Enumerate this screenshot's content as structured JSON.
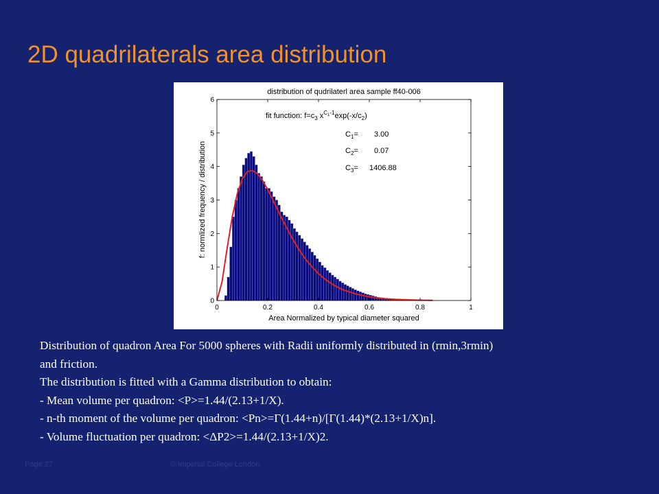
{
  "slide": {
    "title": "2D quadrilaterals area distribution",
    "page": "Page 27",
    "copyright": "© Imperial College London",
    "background_color": "#142270",
    "title_color": "#f0922c"
  },
  "body": {
    "lines": [
      "Distribution of quadron Area For 5000 spheres with Radii uniformly distributed in (rmin,3rmin)",
      "and friction.",
      "The distribution is fitted with a Gamma distribution to obtain:",
      "- Mean volume per quadron:  <P>=1.44/(2.13+1/X).",
      "- n-th moment of the volume per quadron: <Pn>=Γ(1.44+n)/[Γ(1.44)*(2.13+1/X)n].",
      "- Volume fluctuation per quadron: <ΔP2>=1.44/(2.13+1/X)2."
    ]
  },
  "chart_data": {
    "type": "bar",
    "title": "distribution of qudrilaterl area sample ff40-006",
    "xlabel": "Area Normalized by typical diameter squared",
    "ylabel": "f: normlized frequency / distribution",
    "xlim": [
      0,
      1
    ],
    "ylim": [
      0,
      6
    ],
    "xticks": [
      "0",
      "0.2",
      "0.4",
      "0.6",
      "0.8",
      "1"
    ],
    "yticks": [
      "0",
      "1",
      "2",
      "3",
      "4",
      "5",
      "6"
    ],
    "grid": false,
    "bar_color": "#0a0a80",
    "fit_color": "#e02020",
    "fit_text": {
      "prefix": "fit function: f=c",
      "sub1": "3",
      "mid": " x",
      "sup": "C",
      "supsub": "1",
      "supend": "-1",
      "suffix": "exp(-x/c",
      "sub2": "2",
      "end": ")"
    },
    "params": [
      {
        "name": "C",
        "index": "1",
        "sign": "=",
        "value": "3.00"
      },
      {
        "name": "C",
        "index": "2",
        "sign": "=",
        "value": "0.07"
      },
      {
        "name": "C",
        "index": "3",
        "sign": "=",
        "value": "1406.88"
      }
    ],
    "bins": {
      "start": 0.03,
      "width": 0.01,
      "values": [
        0.15,
        0.7,
        1.6,
        2.5,
        3.0,
        3.35,
        3.7,
        4.05,
        4.25,
        4.4,
        4.45,
        4.3,
        4.05,
        3.8,
        3.7,
        3.55,
        3.35,
        3.35,
        3.25,
        3.1,
        3.0,
        2.85,
        2.65,
        2.55,
        2.5,
        2.4,
        2.3,
        2.15,
        2.05,
        1.95,
        1.85,
        1.75,
        1.65,
        1.55,
        1.45,
        1.35,
        1.25,
        1.15,
        1.05,
        0.98,
        0.9,
        0.83,
        0.76,
        0.7,
        0.64,
        0.58,
        0.53,
        0.48,
        0.44,
        0.4,
        0.36,
        0.32,
        0.29,
        0.26,
        0.23,
        0.2,
        0.18,
        0.16,
        0.14,
        0.12,
        0.1,
        0.09,
        0.08,
        0.07,
        0.06,
        0.05,
        0.04,
        0.035,
        0.03,
        0.025,
        0.02,
        0.017,
        0.014,
        0.011,
        0.009,
        0.007,
        0.005,
        0.004,
        0.003,
        0.002,
        0.002,
        0.001,
        0.001
      ]
    },
    "fit": {
      "x": [
        0.0,
        0.02,
        0.04,
        0.06,
        0.08,
        0.1,
        0.12,
        0.14,
        0.16,
        0.18,
        0.2,
        0.22,
        0.24,
        0.26,
        0.28,
        0.3,
        0.32,
        0.34,
        0.36,
        0.38,
        0.4,
        0.42,
        0.44,
        0.46,
        0.48,
        0.5,
        0.55,
        0.6,
        0.65,
        0.7,
        0.75,
        0.8,
        0.85
      ],
      "y": [
        0.0,
        0.55,
        1.55,
        2.48,
        3.19,
        3.63,
        3.85,
        3.88,
        3.78,
        3.58,
        3.31,
        3.01,
        2.69,
        2.38,
        2.09,
        1.81,
        1.56,
        1.33,
        1.13,
        0.96,
        0.8,
        0.67,
        0.56,
        0.46,
        0.38,
        0.31,
        0.19,
        0.11,
        0.06,
        0.035,
        0.02,
        0.01,
        0.005
      ]
    }
  }
}
